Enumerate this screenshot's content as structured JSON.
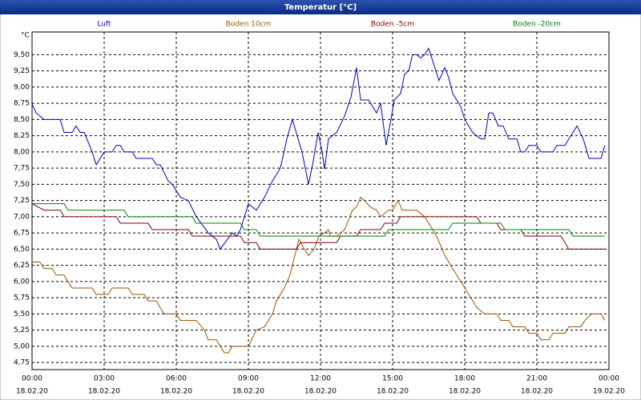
{
  "chart_data": {
    "type": "line",
    "title": "Temperatur [°C]",
    "y_unit": "°C",
    "xlim": [
      0,
      24
    ],
    "ylim": [
      4.64,
      9.85
    ],
    "grid": true,
    "legend": "top",
    "xticks": [
      {
        "value": 0,
        "label": "00:00"
      },
      {
        "value": 3,
        "label": "03:00"
      },
      {
        "value": 6,
        "label": "06:00"
      },
      {
        "value": 9,
        "label": "09:00"
      },
      {
        "value": 12,
        "label": "12:00"
      },
      {
        "value": 15,
        "label": "15:00"
      },
      {
        "value": 18,
        "label": "18:00"
      },
      {
        "value": 21,
        "label": "21:00"
      },
      {
        "value": 24,
        "label": "00:00"
      }
    ],
    "xtick_dates": [
      "18.02.20",
      "18.02.20",
      "18.02.20",
      "18.02.20",
      "18.02.20",
      "18.02.20",
      "18.02.20",
      "18.02.20",
      "19.02.20"
    ],
    "yticks": [
      {
        "value": 4.75,
        "label": "4,75"
      },
      {
        "value": 5.0,
        "label": "5,00"
      },
      {
        "value": 5.25,
        "label": "5,25"
      },
      {
        "value": 5.5,
        "label": "5,50"
      },
      {
        "value": 5.75,
        "label": "5,75"
      },
      {
        "value": 6.0,
        "label": "6,00"
      },
      {
        "value": 6.25,
        "label": "6,25"
      },
      {
        "value": 6.5,
        "label": "6,50"
      },
      {
        "value": 6.75,
        "label": "6,75"
      },
      {
        "value": 7.0,
        "label": "7,00"
      },
      {
        "value": 7.25,
        "label": "7,25"
      },
      {
        "value": 7.5,
        "label": "7,50"
      },
      {
        "value": 7.75,
        "label": "7,75"
      },
      {
        "value": 8.0,
        "label": "8,00"
      },
      {
        "value": 8.25,
        "label": "8,25"
      },
      {
        "value": 8.5,
        "label": "8,50"
      },
      {
        "value": 8.75,
        "label": "8,75"
      },
      {
        "value": 9.0,
        "label": "9,00"
      },
      {
        "value": 9.25,
        "label": "9,25"
      },
      {
        "value": 9.5,
        "label": "9,50"
      }
    ],
    "series": [
      {
        "name": "Luft",
        "color": "#0000c0",
        "x": [
          0,
          0.17,
          0.5,
          1.17,
          1.33,
          1.67,
          1.83,
          2,
          2.17,
          2.5,
          2.67,
          3,
          3.33,
          3.5,
          3.67,
          3.83,
          4.17,
          4.33,
          5,
          5.17,
          5.33,
          5.67,
          5.83,
          6.17,
          6.5,
          6.83,
          7.33,
          7.67,
          7.83,
          8.33,
          8.5,
          8.67,
          9,
          9.33,
          9.67,
          10,
          10.33,
          10.6,
          10.83,
          11.07,
          11.23,
          11.5,
          11.67,
          11.9,
          12.07,
          12.17,
          12.33,
          12.67,
          13,
          13.27,
          13.5,
          13.67,
          14,
          14.17,
          14.33,
          14.5,
          14.73,
          14.93,
          15.07,
          15.33,
          15.5,
          15.67,
          15.83,
          16,
          16.17,
          16.33,
          16.5,
          16.67,
          16.93,
          17.17,
          17.33,
          17.5,
          17.83,
          18,
          18.33,
          18.67,
          18.83,
          19,
          19.17,
          19.4,
          19.6,
          19.83,
          20.17,
          20.33,
          20.5,
          20.67,
          21,
          21.17,
          21.67,
          21.83,
          22.17,
          22.33,
          22.67,
          22.93,
          23.17,
          23.67,
          23.83
        ],
        "values": [
          8.74,
          8.6,
          8.5,
          8.5,
          8.3,
          8.3,
          8.4,
          8.3,
          8.3,
          8.0,
          7.8,
          8.0,
          8.0,
          8.1,
          8.1,
          8.0,
          8.0,
          7.9,
          7.9,
          7.8,
          7.8,
          7.55,
          7.5,
          7.3,
          7.25,
          7.0,
          6.75,
          6.65,
          6.5,
          6.75,
          6.7,
          6.8,
          7.2,
          7.1,
          7.3,
          7.55,
          7.75,
          8.2,
          8.5,
          8.2,
          8.0,
          7.5,
          7.8,
          8.3,
          8.0,
          7.73,
          8.2,
          8.3,
          8.55,
          8.85,
          9.3,
          8.8,
          8.8,
          8.7,
          8.6,
          8.75,
          8.1,
          8.5,
          8.8,
          8.9,
          9.2,
          9.25,
          9.5,
          9.5,
          9.45,
          9.5,
          9.6,
          9.4,
          9.1,
          9.3,
          9.15,
          8.9,
          8.7,
          8.5,
          8.3,
          8.2,
          8.2,
          8.6,
          8.6,
          8.4,
          8.4,
          8.2,
          8.2,
          8.0,
          8.0,
          8.1,
          8.1,
          8.0,
          8.0,
          8.1,
          8.1,
          8.2,
          8.4,
          8.2,
          7.9,
          7.9,
          8.1
        ]
      },
      {
        "name": "Boden 10cm",
        "color": "#a05000",
        "x": [
          0,
          0.33,
          0.5,
          0.83,
          1,
          1.33,
          1.5,
          1.67,
          2.5,
          2.67,
          3.17,
          3.33,
          4,
          4.17,
          4.67,
          4.83,
          5.17,
          5.33,
          5.5,
          6,
          6.17,
          6.83,
          7.17,
          7.33,
          7.67,
          7.83,
          8,
          8.17,
          8.33,
          9,
          9.33,
          9.67,
          10,
          10.17,
          10.5,
          10.73,
          10.93,
          11.1,
          11.33,
          11.5,
          11.73,
          11.93,
          12.17,
          12.33,
          12.4,
          12.67,
          13,
          13.17,
          13.33,
          13.5,
          13.67,
          13.83,
          14.07,
          14.33,
          14.5,
          14.83,
          15,
          15.23,
          15.4,
          16,
          16.33,
          16.67,
          16.83,
          17.17,
          17.5,
          17.83,
          18.17,
          18.5,
          18.83,
          19.33,
          19.5,
          19.83,
          20,
          20.5,
          20.67,
          21,
          21.17,
          21.5,
          21.67,
          22.17,
          22.33,
          22.83,
          23,
          23.27,
          23.67,
          23.83
        ],
        "values": [
          6.3,
          6.3,
          6.2,
          6.2,
          6.1,
          6.1,
          6.0,
          5.9,
          5.9,
          5.8,
          5.8,
          5.9,
          5.9,
          5.8,
          5.8,
          5.7,
          5.7,
          5.6,
          5.5,
          5.5,
          5.4,
          5.4,
          5.25,
          5.1,
          5.1,
          5.0,
          4.9,
          4.9,
          5.0,
          5.0,
          5.25,
          5.3,
          5.5,
          5.7,
          5.9,
          6.1,
          6.4,
          6.65,
          6.5,
          6.4,
          6.5,
          6.7,
          6.75,
          6.8,
          6.7,
          6.7,
          6.8,
          6.95,
          7.1,
          7.15,
          7.3,
          7.25,
          7.15,
          7.1,
          7.0,
          7.1,
          7.1,
          7.25,
          7.1,
          7.1,
          7.0,
          6.8,
          6.7,
          6.4,
          6.2,
          6.0,
          5.8,
          5.6,
          5.5,
          5.5,
          5.4,
          5.4,
          5.3,
          5.3,
          5.2,
          5.2,
          5.1,
          5.1,
          5.2,
          5.2,
          5.3,
          5.3,
          5.4,
          5.5,
          5.5,
          5.4
        ]
      },
      {
        "name": "Boden -5cm",
        "color": "#800000",
        "x": [
          0,
          0.5,
          1.17,
          1.33,
          3.5,
          3.67,
          4.83,
          5,
          6.5,
          6.67,
          8.67,
          8.83,
          9.33,
          9.5,
          11,
          11.17,
          12.67,
          12.83,
          13.5,
          13.67,
          14.5,
          14.67,
          15.17,
          15.33,
          18.5,
          18.67,
          19.33,
          19.5,
          20.33,
          20.5,
          22,
          22.17,
          22.33,
          23.83
        ],
        "values": [
          7.2,
          7.1,
          7.1,
          7.0,
          7.0,
          6.9,
          6.9,
          6.8,
          6.8,
          6.7,
          6.7,
          6.6,
          6.6,
          6.5,
          6.5,
          6.6,
          6.6,
          6.7,
          6.7,
          6.8,
          6.8,
          6.9,
          6.9,
          7.0,
          7.0,
          6.9,
          6.9,
          6.8,
          6.8,
          6.7,
          6.7,
          6.6,
          6.5,
          6.5
        ]
      },
      {
        "name": "Boden -20cm",
        "color": "#008000",
        "x": [
          0,
          1.33,
          1.5,
          3.83,
          4,
          6.67,
          6.83,
          8.67,
          8.83,
          9.33,
          9.5,
          14.67,
          14.83,
          17.33,
          17.5,
          19.5,
          19.67,
          22.33,
          22.5,
          23.83
        ],
        "values": [
          7.2,
          7.2,
          7.1,
          7.1,
          7.0,
          7.0,
          6.9,
          6.9,
          6.8,
          6.8,
          6.7,
          6.7,
          6.8,
          6.8,
          6.9,
          6.9,
          6.8,
          6.8,
          6.7,
          6.7
        ]
      }
    ]
  }
}
